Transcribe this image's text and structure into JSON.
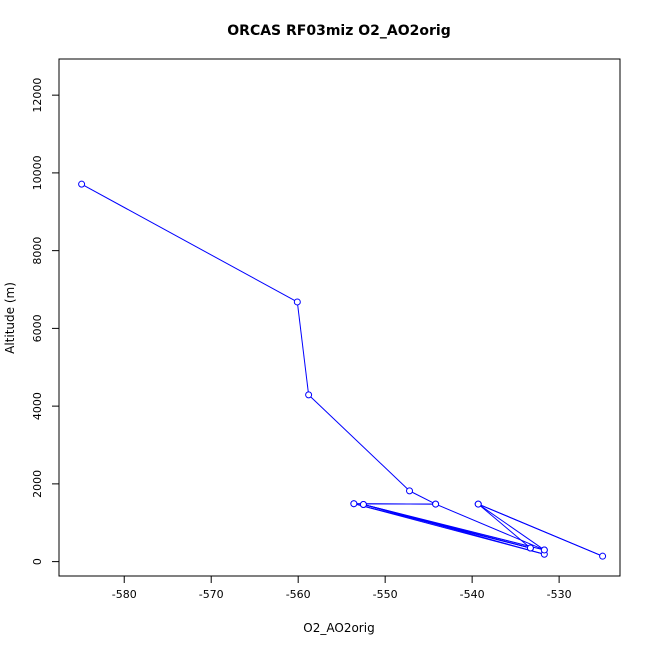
{
  "chart_data": {
    "type": "line",
    "title": "ORCAS RF03miz O2_AO2orig",
    "xlabel": "O2_AO2orig",
    "ylabel": "Altitude (m)",
    "xlim": [
      -587.5,
      -523.0
    ],
    "ylim": [
      -370,
      12930
    ],
    "xticks": [
      -580,
      -570,
      -560,
      -550,
      -540,
      -530
    ],
    "yticks": [
      0,
      2000,
      4000,
      6000,
      8000,
      10000,
      12000
    ],
    "xtick_labels": [
      "-580",
      "-570",
      "-560",
      "-550",
      "-540",
      "-530"
    ],
    "ytick_labels": [
      "0",
      "2000",
      "4000",
      "6000",
      "8000",
      "10000",
      "12000"
    ],
    "series": [
      {
        "color": "#0000ff",
        "markers": "open-circle",
        "points": [
          {
            "x": -584.9,
            "y": 9710
          },
          {
            "x": -560.1,
            "y": 6680
          },
          {
            "x": -558.8,
            "y": 4290
          },
          {
            "x": -547.2,
            "y": 1820
          },
          {
            "x": -544.2,
            "y": 1480
          },
          {
            "x": -531.7,
            "y": 300
          },
          {
            "x": -552.5,
            "y": 1470
          },
          {
            "x": -531.7,
            "y": 190
          },
          {
            "x": -553.6,
            "y": 1490
          },
          {
            "x": -544.2,
            "y": 1480
          },
          {
            "x": -553.6,
            "y": 1490
          },
          {
            "x": -533.3,
            "y": 350
          },
          {
            "x": -552.5,
            "y": 1470
          },
          {
            "x": -533.3,
            "y": 350
          },
          {
            "x": -539.3,
            "y": 1480
          },
          {
            "x": -525.0,
            "y": 140
          },
          {
            "x": -539.3,
            "y": 1480
          },
          {
            "x": -531.7,
            "y": 300
          }
        ]
      }
    ],
    "grid": false,
    "legend": "none"
  }
}
